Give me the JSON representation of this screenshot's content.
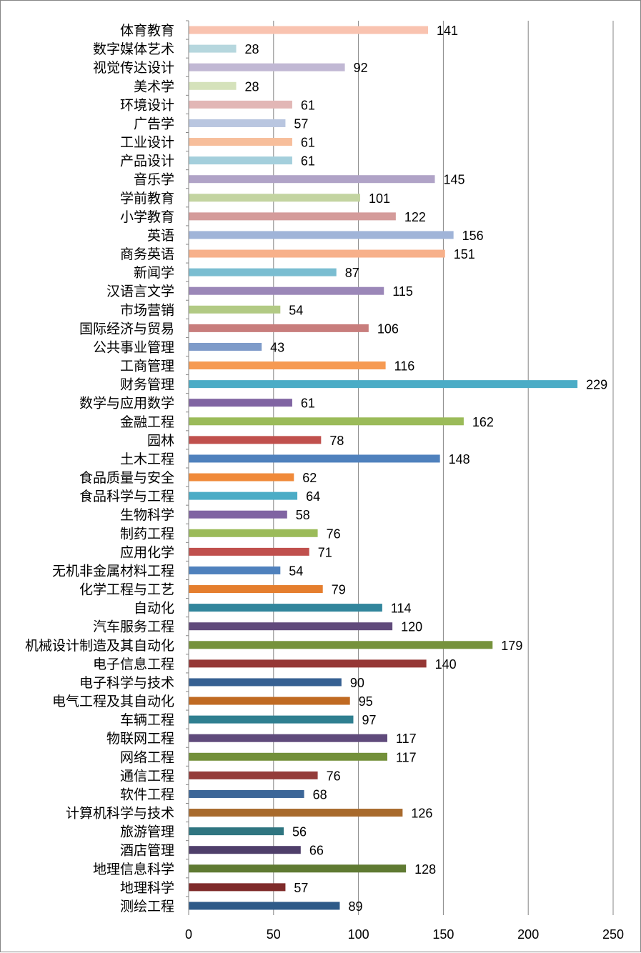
{
  "chart_data": {
    "type": "bar",
    "orientation": "horizontal",
    "title": "",
    "xlabel": "",
    "ylabel": "",
    "xlim": [
      0,
      250
    ],
    "x_ticks": [
      0,
      50,
      100,
      150,
      200,
      250
    ],
    "grid": true,
    "legend": "none",
    "categories": [
      "体育教育",
      "数字媒体艺术",
      "视觉传达设计",
      "美术学",
      "环境设计",
      "广告学",
      "工业设计",
      "产品设计",
      "音乐学",
      "学前教育",
      "小学教育",
      "英语",
      "商务英语",
      "新闻学",
      "汉语言文学",
      "市场营销",
      "国际经济与贸易",
      "公共事业管理",
      "工商管理",
      "财务管理",
      "数学与应用数学",
      "金融工程",
      "园林",
      "土木工程",
      "食品质量与安全",
      "食品科学与工程",
      "生物科学",
      "制药工程",
      "应用化学",
      "无机非金属材料工程",
      "化学工程与工艺",
      "自动化",
      "汽车服务工程",
      "机械设计制造及其自动化",
      "电子信息工程",
      "电子科学与技术",
      "电气工程及其自动化",
      "车辆工程",
      "物联网工程",
      "网络工程",
      "通信工程",
      "软件工程",
      "计算机科学与技术",
      "旅游管理",
      "酒店管理",
      "地理信息科学",
      "地理科学",
      "测绘工程"
    ],
    "values": [
      141,
      28,
      92,
      28,
      61,
      57,
      61,
      61,
      145,
      101,
      122,
      156,
      151,
      87,
      115,
      54,
      106,
      43,
      116,
      229,
      61,
      162,
      78,
      148,
      62,
      64,
      58,
      76,
      71,
      54,
      79,
      114,
      120,
      179,
      140,
      90,
      95,
      97,
      117,
      117,
      76,
      68,
      126,
      56,
      66,
      128,
      57,
      89
    ],
    "colors": [
      "#F9C3B0",
      "#B6D7DE",
      "#C1B8D4",
      "#D5E2BB",
      "#E2B7B6",
      "#B9C6E0",
      "#F7BE9B",
      "#A4CFDC",
      "#B0A3C7",
      "#C3D4A1",
      "#D49B9A",
      "#A0B4D8",
      "#F7B08A",
      "#7ABDD1",
      "#9B87B8",
      "#B2CA84",
      "#C87D7C",
      "#7E9BC9",
      "#F69A52",
      "#4BACC6",
      "#8064A2",
      "#9BBB59",
      "#C0504D",
      "#4F81BD",
      "#F08A3A",
      "#4BACC6",
      "#8064A2",
      "#9BBB59",
      "#C0504D",
      "#4F81BD",
      "#E57E2E",
      "#31859C",
      "#604A7B",
      "#76923C",
      "#953735",
      "#366092",
      "#C06A22",
      "#2F7F90",
      "#5F4A7B",
      "#73903A",
      "#943C3A",
      "#3C6698",
      "#A86A2C",
      "#2F7580",
      "#4F3F6A",
      "#5F7A32",
      "#7F2B2A",
      "#2E5A88"
    ]
  }
}
